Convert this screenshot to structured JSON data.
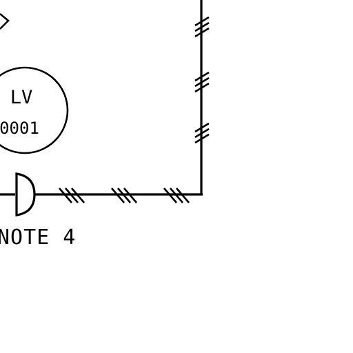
{
  "instrument": {
    "tag_type": "LV",
    "tag_number": "0001"
  },
  "note_label": "NOTE 4",
  "colors": {
    "background": "#ffffff",
    "ink": "#000000"
  },
  "symbols": [
    "diamond-symbol",
    "instrument-balloon",
    "actuator-symbol",
    "pneumatic-signal-hash-marks"
  ]
}
